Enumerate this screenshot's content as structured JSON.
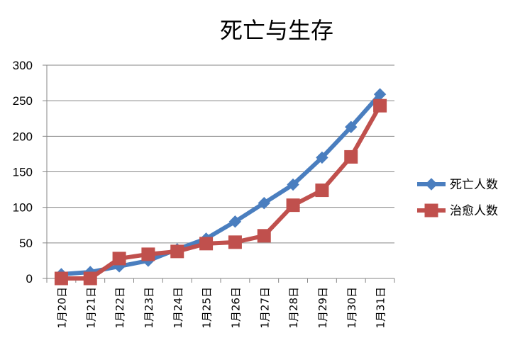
{
  "chart_data": {
    "type": "line",
    "title": "死亡与生存",
    "xlabel": "",
    "ylabel": "",
    "ylim": [
      0,
      300
    ],
    "yticks": [
      0,
      50,
      100,
      150,
      200,
      250,
      300
    ],
    "grid": true,
    "legend_position": "right",
    "categories": [
      "1月20日",
      "1月21日",
      "1月22日",
      "1月23日",
      "1月24日",
      "1月25日",
      "1月26日",
      "1月27日",
      "1月28日",
      "1月29日",
      "1月30日",
      "1月31日"
    ],
    "series": [
      {
        "name": "死亡人数",
        "color": "#4a7ebf",
        "marker": "diamond",
        "values": [
          6,
          9,
          17,
          25,
          41,
          56,
          80,
          106,
          132,
          170,
          213,
          259
        ]
      },
      {
        "name": "治愈人数",
        "color": "#c0504d",
        "marker": "square",
        "values": [
          0,
          0,
          28,
          34,
          38,
          49,
          51,
          60,
          103,
          124,
          171,
          243
        ]
      }
    ]
  }
}
